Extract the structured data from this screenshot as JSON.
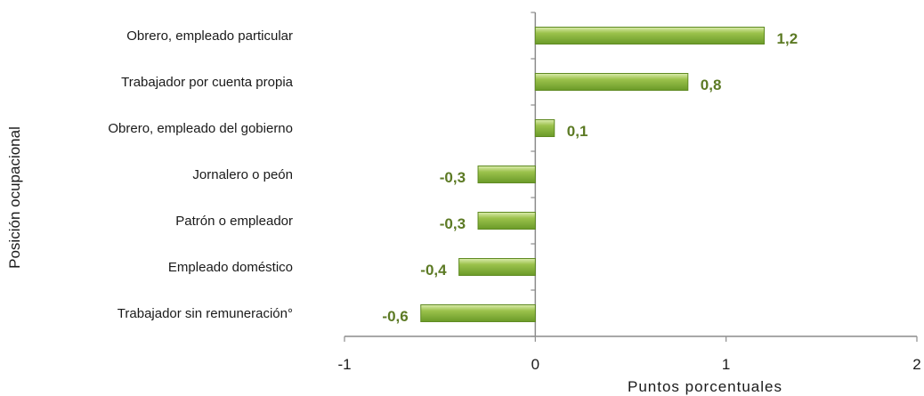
{
  "chart_data": {
    "type": "bar",
    "orientation": "horizontal",
    "categories": [
      "Obrero, empleado particular",
      "Trabajador por cuenta propia",
      "Obrero, empleado del gobierno",
      "Jornalero o peón",
      "Patrón o empleador",
      "Empleado doméstico",
      "Trabajador sin remuneración°"
    ],
    "values": [
      1.2,
      0.8,
      0.1,
      -0.3,
      -0.3,
      -0.4,
      -0.6
    ],
    "data_labels": [
      "1,2",
      "0,8",
      "0,1",
      "-0,3",
      "-0,3",
      "-0,4",
      "-0,6"
    ],
    "xlim": [
      -1,
      2
    ],
    "xticks": [
      -1,
      0,
      1,
      2
    ],
    "xtick_labels": [
      "-1",
      "0",
      "1",
      "2"
    ],
    "xlabel": "Puntos porcentuales",
    "ylabel": "Posición ocupacional",
    "grid": false,
    "legend": "none",
    "colors": {
      "bar": "#8cb042",
      "bar_dark": "#5f8a22",
      "label": "#5c7a24",
      "axis": "#8c8c8c"
    }
  }
}
